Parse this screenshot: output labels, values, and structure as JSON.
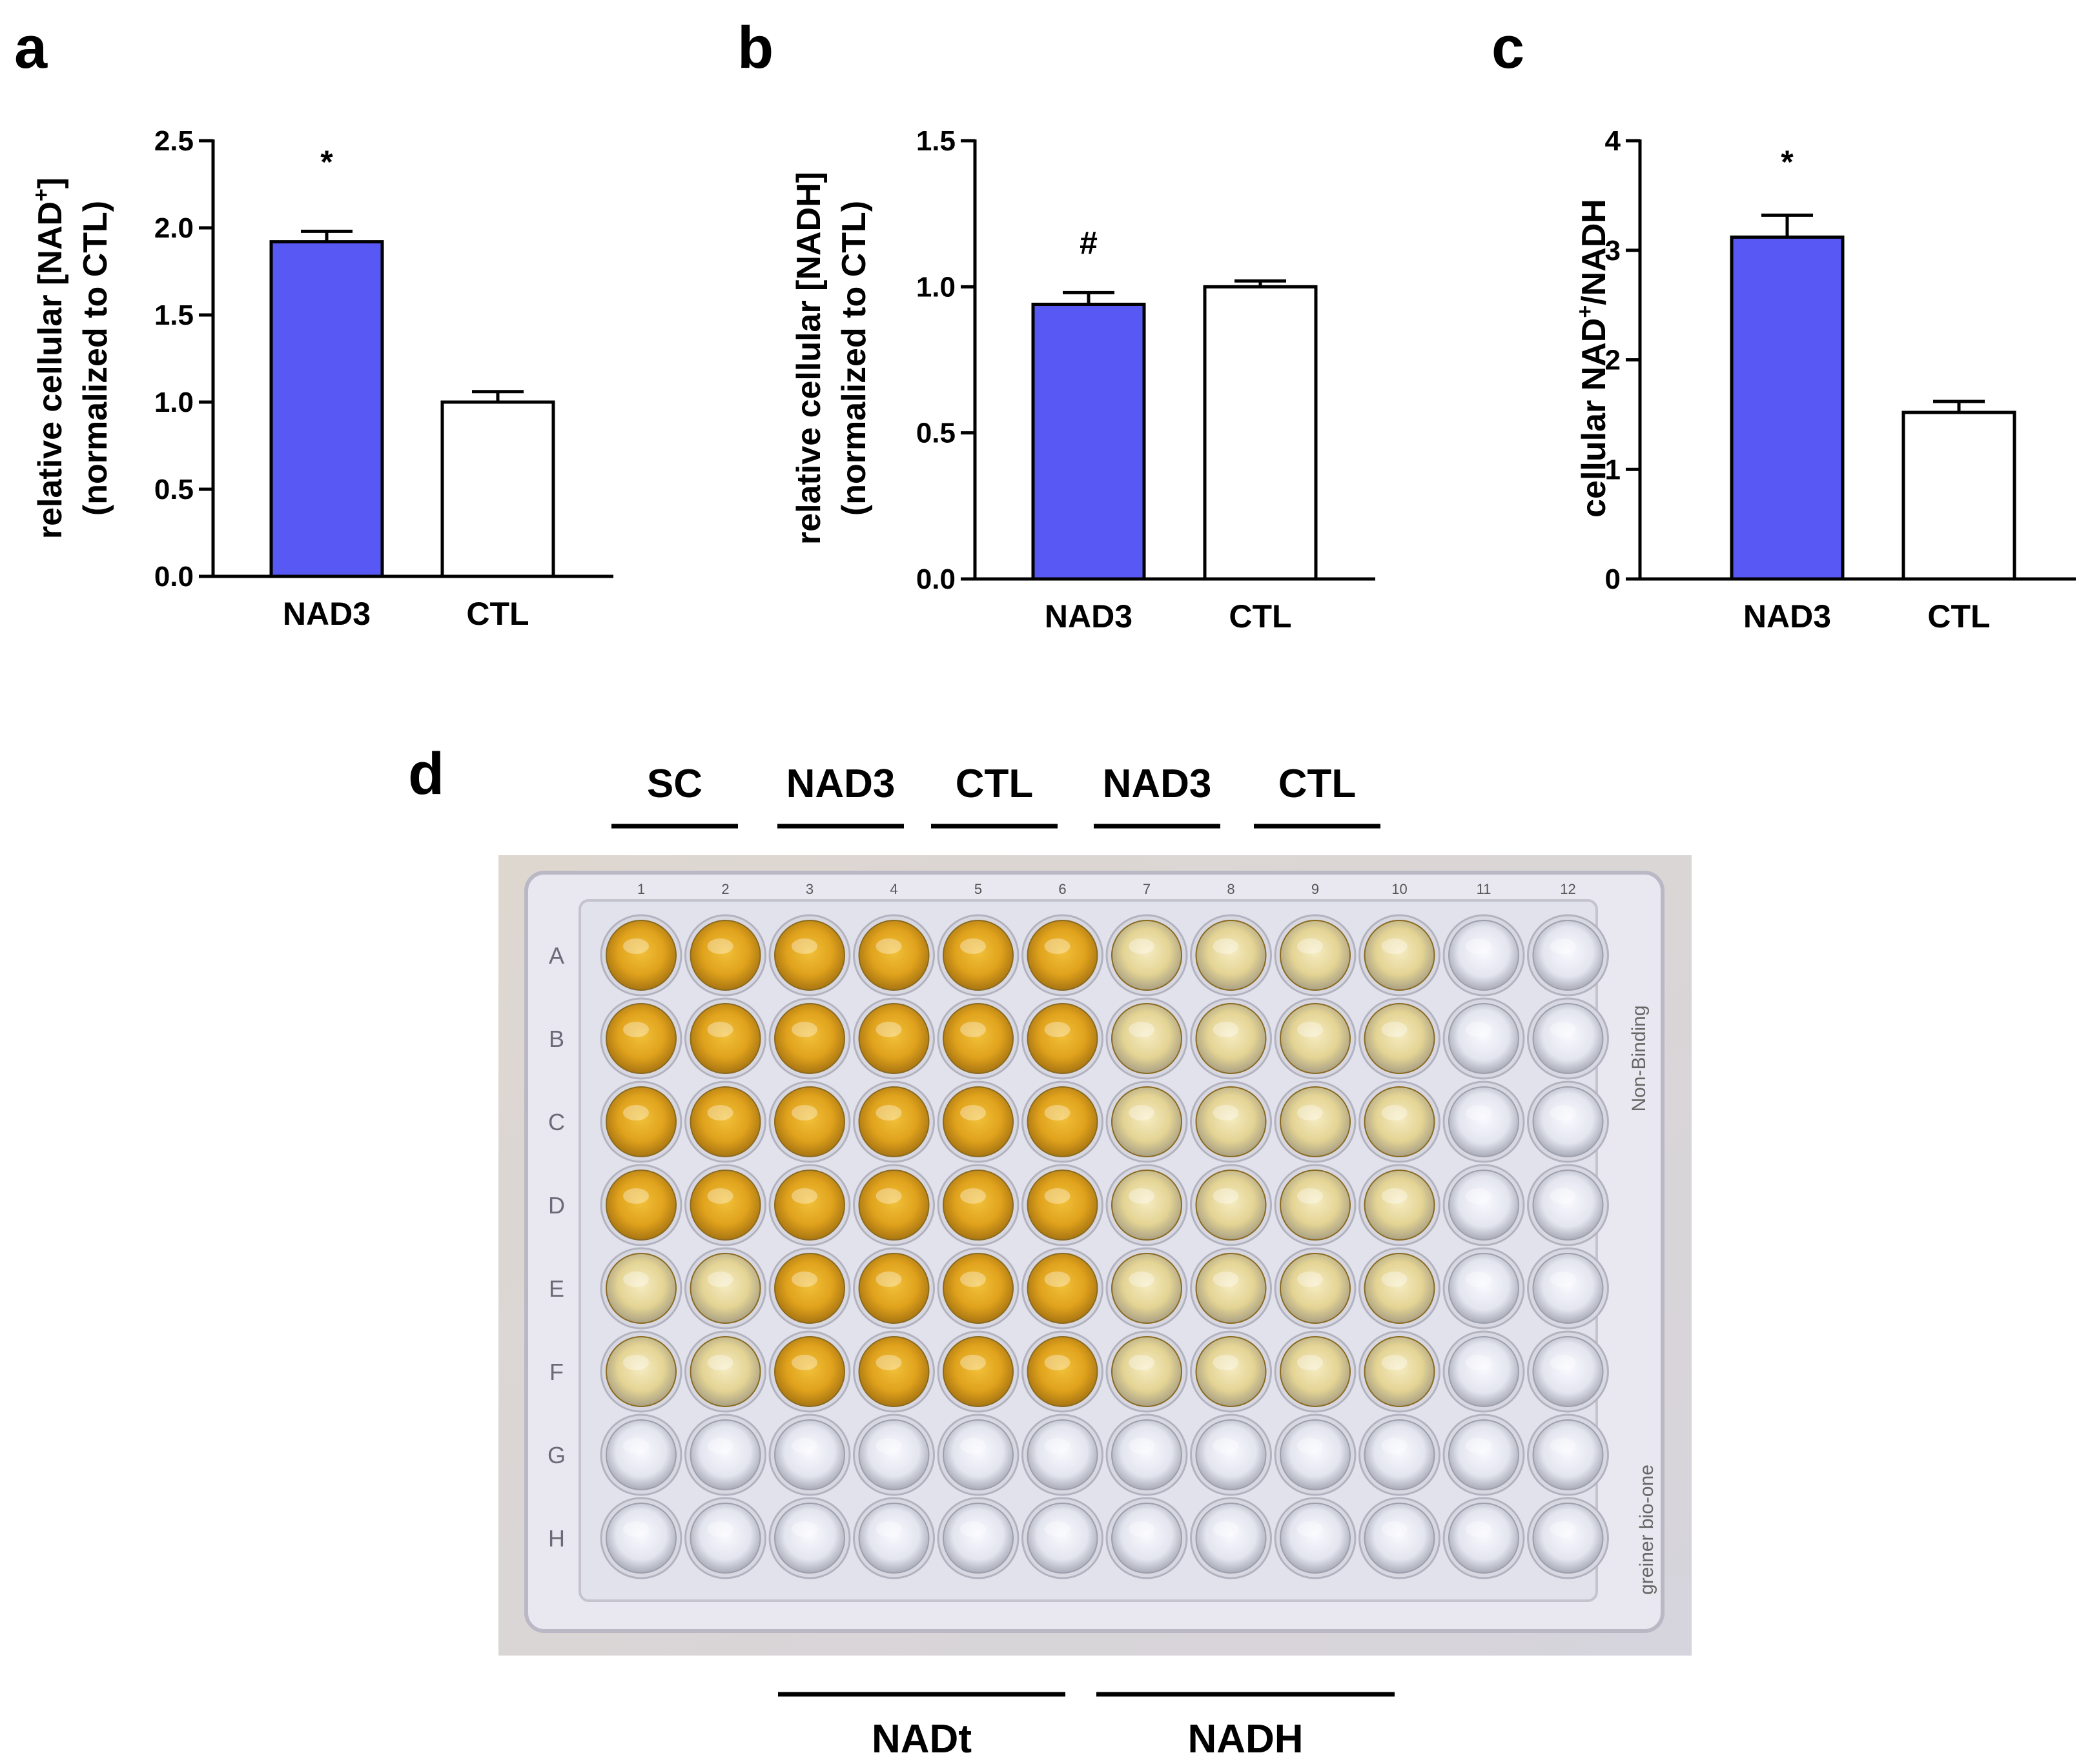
{
  "panels": {
    "a": "a",
    "b": "b",
    "c": "c",
    "d": "d"
  },
  "chart_data": [
    {
      "panel": "a",
      "type": "bar",
      "categories": [
        "NAD3",
        "CTL"
      ],
      "values": [
        1.92,
        1.0
      ],
      "errors": [
        0.06,
        0.06
      ],
      "annotations": [
        "*",
        ""
      ],
      "colors": [
        "#5858f5",
        "#ffffff"
      ],
      "ylabel_lines": [
        "relative cellular [NAD",
        "+",
        "]",
        "(normalized to CTL)"
      ],
      "ylim": [
        0,
        2.5
      ],
      "yticks": [
        "0.0",
        "0.5",
        "1.0",
        "1.5",
        "2.0",
        "2.5"
      ]
    },
    {
      "panel": "b",
      "type": "bar",
      "categories": [
        "NAD3",
        "CTL"
      ],
      "values": [
        0.94,
        1.0
      ],
      "errors": [
        0.04,
        0.02
      ],
      "annotations": [
        "#",
        ""
      ],
      "colors": [
        "#5858f5",
        "#ffffff"
      ],
      "ylabel_lines": [
        "relative cellular [NADH]",
        "(normalized to CTL)"
      ],
      "ylim": [
        0,
        1.5
      ],
      "yticks": [
        "0.0",
        "0.5",
        "1.0",
        "1.5"
      ]
    },
    {
      "panel": "c",
      "type": "bar",
      "categories": [
        "NAD3",
        "CTL"
      ],
      "values": [
        3.12,
        1.52
      ],
      "errors": [
        0.2,
        0.1
      ],
      "annotations": [
        "*",
        ""
      ],
      "colors": [
        "#5858f5",
        "#ffffff"
      ],
      "ylabel_lines": [
        "cellular NAD",
        "+",
        "/NADH"
      ],
      "ylim": [
        0,
        4
      ],
      "yticks": [
        "0",
        "1",
        "2",
        "3",
        "4"
      ]
    }
  ],
  "plate": {
    "top_groups": [
      "SC",
      "NAD3",
      "CTL",
      "NAD3",
      "CTL"
    ],
    "bottom_groups": [
      "NADt",
      "NADH"
    ],
    "row_labels": [
      "A",
      "B",
      "C",
      "D",
      "E",
      "F",
      "G",
      "H"
    ],
    "col_labels": [
      "1",
      "2",
      "3",
      "4",
      "5",
      "6",
      "7",
      "8",
      "9",
      "10",
      "11",
      "12"
    ],
    "side_text": [
      "Non-Binding",
      "greiner bio-one"
    ],
    "well_colors": {
      "strong": "#e0a21c",
      "medium": "#e4b84a",
      "pale": "#e6d79a",
      "empty": "#e4e6f0"
    }
  }
}
